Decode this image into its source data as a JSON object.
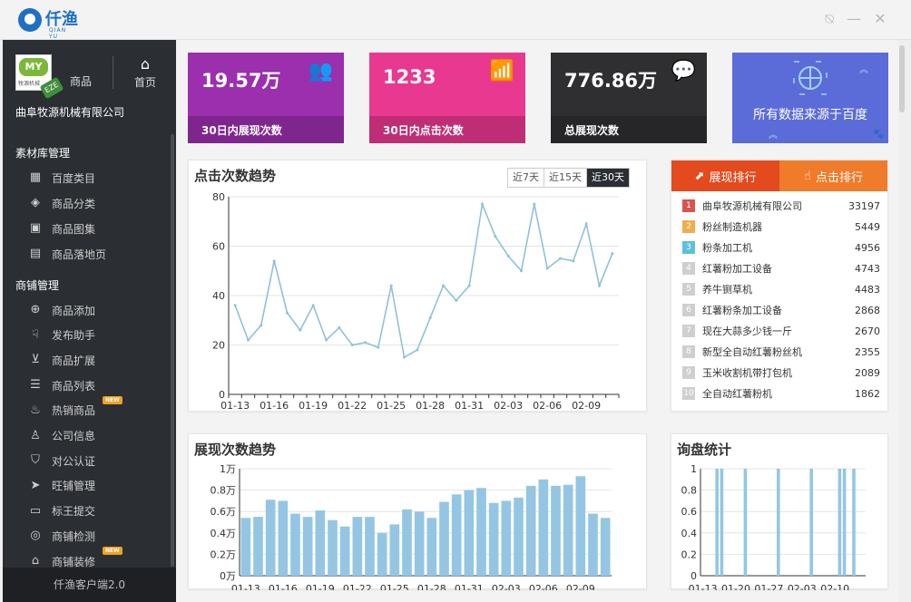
{
  "app": {
    "brand": "仟渔",
    "brand_sub": "QIAN YU"
  },
  "window_controls": {
    "help": "⍉",
    "minimize": "—",
    "close": "✕"
  },
  "sidebar": {
    "goods_label": "商品",
    "home_label": "首页",
    "avatar_logo_text": "MY",
    "avatar_sub_text": "牧源机械",
    "avatar_badge": "EZE",
    "company": "曲阜牧源机械有限公司",
    "section1": "素材库管理",
    "section1_items": [
      {
        "label": "百度类目",
        "icon": "grid-icon",
        "glyph": "▦"
      },
      {
        "label": "商品分类",
        "icon": "layers-icon",
        "glyph": "◈"
      },
      {
        "label": "商品图集",
        "icon": "image-icon",
        "glyph": "▣"
      },
      {
        "label": "商品落地页",
        "icon": "page-icon",
        "glyph": "▤"
      }
    ],
    "section2": "商铺管理",
    "section2_items": [
      {
        "label": "商品添加",
        "icon": "plus-circle-icon",
        "glyph": "⊕",
        "new": false
      },
      {
        "label": "发布助手",
        "icon": "thumb-icon",
        "glyph": "☟",
        "new": false
      },
      {
        "label": "商品扩展",
        "icon": "expand-icon",
        "glyph": "⊻",
        "new": false
      },
      {
        "label": "商品列表",
        "icon": "list-icon",
        "glyph": "☰",
        "new": false
      },
      {
        "label": "热销商品",
        "icon": "fire-icon",
        "glyph": "♨",
        "new": true
      },
      {
        "label": "公司信息",
        "icon": "user-info-icon",
        "glyph": "♙",
        "new": false
      },
      {
        "label": "对公认证",
        "icon": "shield-icon",
        "glyph": "⛉",
        "new": false
      },
      {
        "label": "旺铺管理",
        "icon": "send-icon",
        "glyph": "➤",
        "new": false
      },
      {
        "label": "标王提交",
        "icon": "card-icon",
        "glyph": "▭",
        "new": false
      },
      {
        "label": "商铺检测",
        "icon": "monitor-icon",
        "glyph": "◎",
        "new": false
      },
      {
        "label": "商铺装修",
        "icon": "store-icon",
        "glyph": "⌂",
        "new": true
      }
    ],
    "new_tag": "NEW",
    "footer": "仟渔客户端2.0"
  },
  "stats": [
    {
      "value": "19.57万",
      "label": "30日内展现次数",
      "icon": "users-icon",
      "glyph": "👥",
      "color": "#9b2fae"
    },
    {
      "value": "1233",
      "label": "30日内点击次数",
      "icon": "signal-icon",
      "glyph": "📶",
      "color": "#e8388f"
    },
    {
      "value": "776.86万",
      "label": "总展现次数",
      "icon": "chat-icon",
      "glyph": "💬",
      "color": "#2f2f31"
    }
  ],
  "baidu_banner": {
    "text": "所有数据来源于百度",
    "color": "#5b6bd8"
  },
  "click_trend": {
    "title": "点击次数趋势",
    "ranges": [
      "近7天",
      "近15天",
      "近30天"
    ],
    "active_range": 2
  },
  "ranking": {
    "tabs": [
      {
        "label": "展现排行",
        "icon": "chart-icon",
        "glyph": "⬈",
        "color": "#e34a1d"
      },
      {
        "label": "点击排行",
        "icon": "hand-icon",
        "glyph": "☝",
        "color": "#f07b2a"
      }
    ],
    "items": [
      {
        "rank": "1",
        "name": "曲阜牧源机械有限公司",
        "value": "33197",
        "color": "#d9534f"
      },
      {
        "rank": "2",
        "name": "粉丝制造机器",
        "value": "5449",
        "color": "#f0ad4e"
      },
      {
        "rank": "3",
        "name": "粉条加工机",
        "value": "4956",
        "color": "#5bc0de"
      },
      {
        "rank": "4",
        "name": "红薯粉加工设备",
        "value": "4743",
        "color": "#cfcfcf"
      },
      {
        "rank": "5",
        "name": "养牛铡草机",
        "value": "4483",
        "color": "#cfcfcf"
      },
      {
        "rank": "6",
        "name": "红薯粉条加工设备",
        "value": "2868",
        "color": "#cfcfcf"
      },
      {
        "rank": "7",
        "name": "现在大蒜多少钱一斤",
        "value": "2670",
        "color": "#cfcfcf"
      },
      {
        "rank": "8",
        "name": "新型全自动红薯粉丝机",
        "value": "2355",
        "color": "#cfcfcf"
      },
      {
        "rank": "9",
        "name": "玉米收割机带打包机",
        "value": "2089",
        "color": "#cfcfcf"
      },
      {
        "rank": "10",
        "name": "全自动红薯粉机",
        "value": "1862",
        "color": "#cfcfcf"
      }
    ]
  },
  "impression_trend": {
    "title": "展现次数趋势"
  },
  "inquiry": {
    "title": "询盘统计"
  },
  "chart_data": [
    {
      "type": "line",
      "title": "点击次数趋势",
      "x_tick_labels": [
        "01-13",
        "01-16",
        "01-19",
        "01-22",
        "01-25",
        "01-28",
        "01-31",
        "02-03",
        "02-06",
        "02-09"
      ],
      "values": [
        36,
        22,
        28,
        54,
        33,
        26,
        36,
        22,
        27,
        20,
        21,
        19,
        44,
        15,
        18,
        31,
        44,
        38,
        44,
        77,
        64,
        56,
        50,
        77,
        51,
        55,
        54,
        69,
        44,
        57
      ],
      "ylim": [
        0,
        80
      ],
      "y_ticks": [
        0,
        20,
        40,
        60,
        80
      ],
      "grid": true,
      "color": "#8fc1d9"
    },
    {
      "type": "bar",
      "title": "展现次数趋势",
      "x_tick_labels": [
        "01-13",
        "01-16",
        "01-19",
        "01-22",
        "01-25",
        "01-28",
        "01-31",
        "02-03",
        "02-06",
        "02-09"
      ],
      "values": [
        5400,
        5500,
        7100,
        7000,
        5800,
        5500,
        6100,
        5200,
        4600,
        5500,
        5500,
        4000,
        4800,
        6200,
        6000,
        5400,
        6900,
        7600,
        8000,
        8200,
        6800,
        7000,
        7300,
        8400,
        9000,
        8400,
        8500,
        9300,
        5800,
        5400
      ],
      "y_ticks": [
        0,
        2000,
        4000,
        6000,
        8000,
        10000
      ],
      "y_tick_labels": [
        "0万",
        "0.2万",
        "0.4万",
        "0.6万",
        "0.8万",
        "1万"
      ],
      "ylim": [
        0,
        10000
      ],
      "grid": true,
      "color": "#94c6e4"
    },
    {
      "type": "bar",
      "title": "询盘统计",
      "x_tick_labels": [
        "01-13",
        "01-20",
        "01-27",
        "02-03",
        "02-10"
      ],
      "values": [
        0,
        0,
        0,
        1,
        1,
        0,
        0,
        0,
        0,
        1,
        0,
        0,
        0,
        0,
        0,
        0,
        1,
        0,
        0,
        0,
        0,
        0,
        0,
        1,
        0,
        0,
        0,
        0,
        0,
        1,
        1,
        0,
        1,
        0,
        0
      ],
      "y_ticks": [
        0,
        0.2,
        0.4,
        0.6,
        0.8,
        1
      ],
      "y_tick_labels": [
        "0",
        "0.2",
        "0.4",
        "0.6",
        "0.8",
        "1"
      ],
      "ylim": [
        0,
        1
      ],
      "grid": true,
      "color": "#94c6e4"
    }
  ]
}
